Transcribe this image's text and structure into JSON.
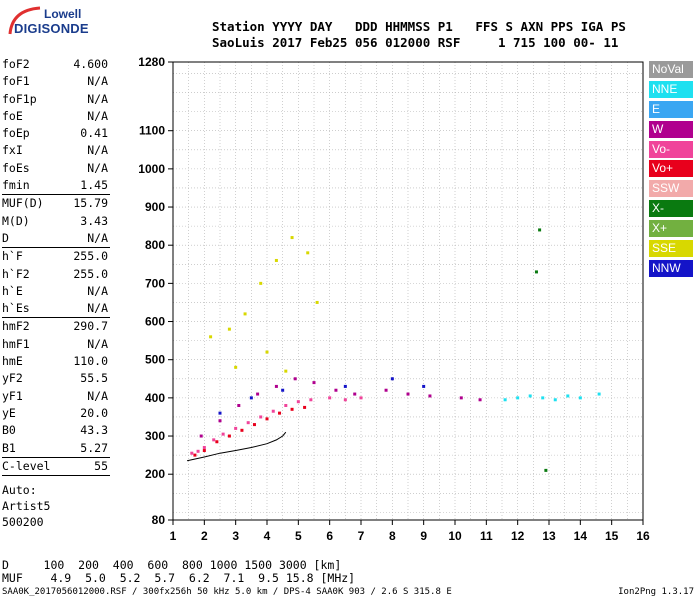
{
  "logo": {
    "line1": "Lowell",
    "line2": "DIGISONDE"
  },
  "header": {
    "line1": "Station YYYY DAY   DDD HHMMSS P1   FFS S AXN PPS IGA PS",
    "line2": "SaoLuis 2017 Feb25 056 012000 RSF     1 715 100 00- 11"
  },
  "params": {
    "group1": [
      {
        "label": "foF2",
        "value": "4.600"
      },
      {
        "label": "foF1",
        "value": "N/A"
      },
      {
        "label": "foF1p",
        "value": "N/A"
      },
      {
        "label": "foE",
        "value": "N/A"
      },
      {
        "label": "foEp",
        "value": "0.41"
      },
      {
        "label": "fxI",
        "value": "N/A"
      },
      {
        "label": "foEs",
        "value": "N/A"
      },
      {
        "label": "fmin",
        "value": "1.45"
      }
    ],
    "group2": [
      {
        "label": "MUF(D)",
        "value": "15.79"
      },
      {
        "label": "M(D)",
        "value": "3.43"
      },
      {
        "label": "D",
        "value": "N/A"
      }
    ],
    "group3": [
      {
        "label": "h`F",
        "value": "255.0"
      },
      {
        "label": "h`F2",
        "value": "255.0"
      },
      {
        "label": "h`E",
        "value": "N/A"
      },
      {
        "label": "h`Es",
        "value": "N/A"
      }
    ],
    "group4": [
      {
        "label": "hmF2",
        "value": "290.7"
      },
      {
        "label": "hmF1",
        "value": "N/A"
      },
      {
        "label": "hmE",
        "value": "110.0"
      },
      {
        "label": "yF2",
        "value": "55.5"
      },
      {
        "label": "yF1",
        "value": "N/A"
      },
      {
        "label": "yE",
        "value": "20.0"
      },
      {
        "label": "B0",
        "value": "43.3"
      },
      {
        "label": "B1",
        "value": "5.27"
      }
    ],
    "group5": [
      {
        "label": "C-level",
        "value": "55"
      }
    ],
    "auto": [
      "Auto:",
      "Artist5",
      "500200"
    ]
  },
  "legend": [
    {
      "label": "NoVal",
      "color": "#9a9a9a"
    },
    {
      "label": "NNE",
      "color": "#1ee0f0"
    },
    {
      "label": "E",
      "color": "#3aa6f2"
    },
    {
      "label": "W",
      "color": "#b0008e"
    },
    {
      "label": "Vo-",
      "color": "#f0449a"
    },
    {
      "label": "Vo+",
      "color": "#e8001c"
    },
    {
      "label": "SSW",
      "color": "#f2aaaa"
    },
    {
      "label": "X-",
      "color": "#0a7a10"
    },
    {
      "label": "X+",
      "color": "#72b040"
    },
    {
      "label": "SSE",
      "color": "#d8d800"
    },
    {
      "label": "NNW",
      "color": "#1414c8"
    }
  ],
  "bottom": {
    "line1": "D     100  200  400  600  800 1000 1500 3000 [km]",
    "line2": "MUF    4.9  5.0  5.2  5.7  6.2  7.1  9.5 15.8 [MHz]"
  },
  "footer": {
    "left": "SAA0K_2017056012000.RSF / 300fx256h 50 kHz 5.0 km / DPS-4 SAA0K 903 / 2.6 S 315.8 E",
    "right": "Ion2Png 1.3.17"
  },
  "chart_data": {
    "type": "scatter",
    "xlim": [
      1,
      16
    ],
    "ylim": [
      80,
      1280
    ],
    "x_ticks": [
      "1",
      "2",
      "3",
      "4",
      "5",
      "6",
      "7",
      "8",
      "9",
      "10",
      "11",
      "12",
      "13",
      "14",
      "15",
      "16"
    ],
    "y_ticks": [
      "80",
      "200",
      "300",
      "400",
      "500",
      "600",
      "700",
      "800",
      "900",
      "1000",
      "1100",
      "1280"
    ],
    "grid": true,
    "legend_placement": "right",
    "series": [
      {
        "color": "#f0449a",
        "points": [
          [
            1.6,
            255
          ],
          [
            1.8,
            260
          ],
          [
            2.0,
            270
          ],
          [
            2.3,
            290
          ],
          [
            2.6,
            305
          ],
          [
            3.0,
            320
          ],
          [
            3.4,
            335
          ],
          [
            3.8,
            350
          ],
          [
            4.2,
            365
          ],
          [
            4.6,
            380
          ],
          [
            5.0,
            390
          ],
          [
            5.4,
            395
          ],
          [
            6.0,
            400
          ],
          [
            6.5,
            395
          ],
          [
            7.0,
            400
          ]
        ]
      },
      {
        "color": "#e8001c",
        "points": [
          [
            1.7,
            250
          ],
          [
            2.0,
            262
          ],
          [
            2.4,
            285
          ],
          [
            2.8,
            300
          ],
          [
            3.2,
            315
          ],
          [
            3.6,
            330
          ],
          [
            4.0,
            345
          ],
          [
            4.4,
            360
          ],
          [
            4.8,
            370
          ],
          [
            5.2,
            375
          ]
        ]
      },
      {
        "color": "#b0008e",
        "points": [
          [
            1.9,
            300
          ],
          [
            2.5,
            340
          ],
          [
            3.1,
            380
          ],
          [
            3.7,
            410
          ],
          [
            4.3,
            430
          ],
          [
            4.9,
            450
          ],
          [
            5.5,
            440
          ],
          [
            6.2,
            420
          ],
          [
            6.8,
            410
          ],
          [
            7.8,
            420
          ],
          [
            8.5,
            410
          ],
          [
            9.2,
            405
          ],
          [
            10.2,
            400
          ],
          [
            10.8,
            395
          ]
        ]
      },
      {
        "color": "#d8d800",
        "points": [
          [
            2.2,
            560
          ],
          [
            2.8,
            580
          ],
          [
            3.3,
            620
          ],
          [
            3.8,
            700
          ],
          [
            4.3,
            760
          ],
          [
            4.8,
            820
          ],
          [
            5.3,
            780
          ],
          [
            5.6,
            650
          ],
          [
            3.0,
            480
          ],
          [
            4.0,
            520
          ],
          [
            4.6,
            470
          ]
        ]
      },
      {
        "color": "#1ee0f0",
        "points": [
          [
            11.6,
            395
          ],
          [
            12.0,
            400
          ],
          [
            12.4,
            405
          ],
          [
            12.8,
            400
          ],
          [
            13.2,
            395
          ],
          [
            13.6,
            405
          ],
          [
            14.0,
            400
          ],
          [
            14.6,
            410
          ]
        ]
      },
      {
        "color": "#1414c8",
        "points": [
          [
            2.5,
            360
          ],
          [
            3.5,
            400
          ],
          [
            4.5,
            420
          ],
          [
            6.5,
            430
          ],
          [
            8.0,
            450
          ],
          [
            9.0,
            430
          ]
        ]
      },
      {
        "color": "#0a7a10",
        "points": [
          [
            12.7,
            840
          ],
          [
            12.6,
            730
          ],
          [
            12.9,
            210
          ]
        ]
      }
    ],
    "profile_curve": [
      [
        1.45,
        235
      ],
      [
        2.0,
        245
      ],
      [
        2.5,
        255
      ],
      [
        3.0,
        262
      ],
      [
        3.5,
        270
      ],
      [
        4.0,
        280
      ],
      [
        4.3,
        290
      ],
      [
        4.5,
        300
      ],
      [
        4.6,
        310
      ]
    ]
  }
}
